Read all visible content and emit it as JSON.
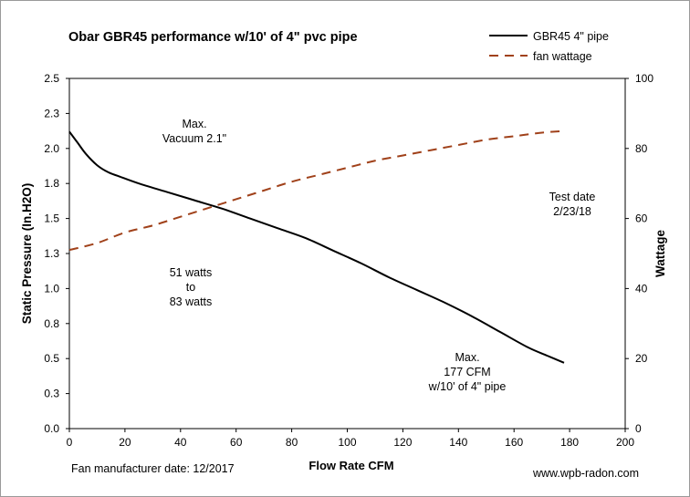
{
  "chart_data": {
    "type": "line",
    "title": "Obar GBR45  performance w/10' of 4\" pvc pipe",
    "xlabel": "Flow Rate  CFM",
    "ylabel": "Static Pressure (In.H2O)",
    "y2label": "Wattage",
    "xlim": [
      0,
      200
    ],
    "ylim": [
      0,
      2.5
    ],
    "y2lim": [
      0,
      100
    ],
    "x_ticks": [
      "0",
      "20",
      "40",
      "60",
      "80",
      "100",
      "120",
      "140",
      "160",
      "180",
      "200"
    ],
    "y_ticks": [
      "0.0",
      "0.3",
      "0.5",
      "0.8",
      "1.0",
      "1.3",
      "1.5",
      "1.8",
      "2.0",
      "2.3",
      "2.5"
    ],
    "y2_ticks": [
      "0",
      "20",
      "40",
      "60",
      "80",
      "100"
    ],
    "grid": false,
    "legend_position": "top-right",
    "series": [
      {
        "name": "GBR45 4\" pipe",
        "axis": "left",
        "color": "#000000",
        "style": "solid",
        "x": [
          0,
          3,
          6,
          10,
          14,
          18,
          25,
          35,
          45,
          55,
          65,
          75,
          85,
          95,
          105,
          115,
          125,
          135,
          145,
          155,
          165,
          172,
          178
        ],
        "y": [
          2.12,
          2.04,
          1.96,
          1.88,
          1.83,
          1.8,
          1.75,
          1.69,
          1.63,
          1.57,
          1.5,
          1.43,
          1.36,
          1.27,
          1.18,
          1.08,
          0.99,
          0.9,
          0.8,
          0.69,
          0.58,
          0.52,
          0.47
        ]
      },
      {
        "name": "fan wattage",
        "axis": "right",
        "color": "#a0411a",
        "style": "dashed",
        "x": [
          0,
          10,
          20,
          30,
          40,
          50,
          60,
          70,
          80,
          90,
          100,
          110,
          120,
          130,
          140,
          150,
          160,
          170,
          178
        ],
        "y": [
          51,
          53,
          56,
          58,
          60.5,
          63,
          65.5,
          68,
          70.5,
          72.5,
          74.5,
          76.5,
          78,
          79.5,
          81,
          82.5,
          83.5,
          84.5,
          85
        ]
      }
    ],
    "annotations": [
      {
        "id": "max-vacuum",
        "lines": [
          "Max.",
          "Vacuum 2.1\""
        ]
      },
      {
        "id": "test-date",
        "lines": [
          "Test date",
          "2/23/18"
        ]
      },
      {
        "id": "watts-range",
        "lines": [
          "51 watts",
          "to",
          "83 watts"
        ]
      },
      {
        "id": "max-cfm",
        "lines": [
          "Max.",
          "177 CFM",
          "w/10' of 4\" pipe"
        ]
      }
    ],
    "footer_left": "Fan manufacturer date: 12/2017",
    "footer_right": "www.wpb-radon.com"
  }
}
